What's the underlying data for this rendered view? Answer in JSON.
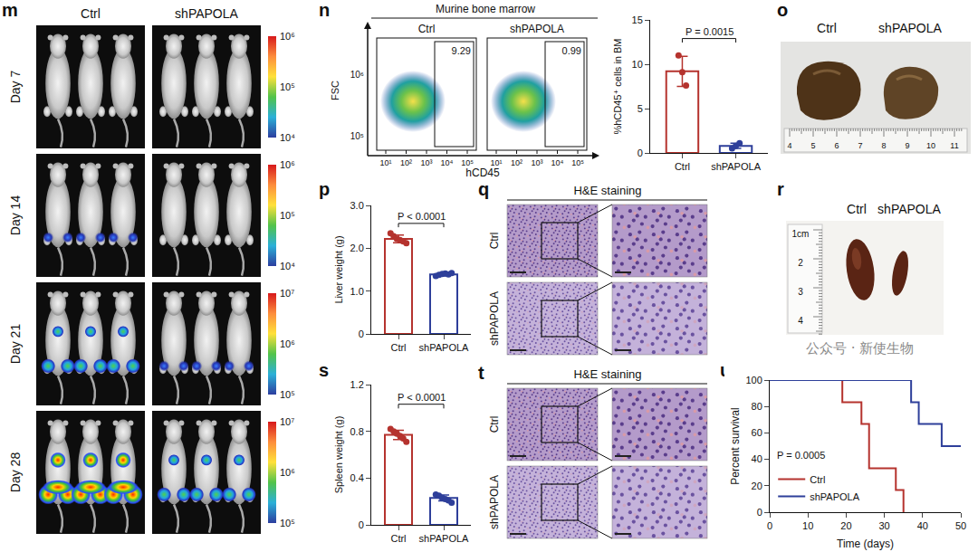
{
  "chart_data": [
    {
      "type": "bar",
      "panel": "n",
      "y_label": "%hCD45⁺ cells in BM",
      "categories": [
        "Ctrl",
        "shPAPOLA"
      ],
      "values": [
        9.2,
        0.8
      ],
      "error": [
        1.7,
        0.3
      ],
      "points": [
        [
          11.0,
          9.1,
          7.6
        ],
        [
          0.5,
          0.8,
          1.1
        ]
      ],
      "colors": [
        "#b5332e",
        "#2e3f9a"
      ],
      "ylim": [
        0,
        15
      ],
      "yticks": [
        0,
        5,
        10,
        15
      ],
      "annotations": [
        {
          "text": "P = 0.0015"
        }
      ],
      "grid": false
    },
    {
      "type": "bar",
      "panel": "p",
      "y_label": "Liver weight (g)",
      "categories": [
        "Ctrl",
        "shPAPOLA"
      ],
      "values": [
        2.22,
        1.39
      ],
      "error": [
        0.09,
        0.03
      ],
      "points": [
        [
          2.35,
          2.28,
          2.22,
          2.19,
          2.16,
          2.12
        ],
        [
          1.35,
          1.38,
          1.4,
          1.41,
          1.39,
          1.42
        ]
      ],
      "colors": [
        "#b5332e",
        "#2e3f9a"
      ],
      "ylim": [
        0,
        3
      ],
      "yticks": [
        0,
        {
          "value": 1,
          "label": "1.0"
        },
        {
          "value": 2,
          "label": "2.0"
        },
        {
          "value": 3,
          "label": "3.0"
        }
      ],
      "annotations": [
        {
          "text": "P < 0.0001"
        }
      ],
      "grid": false
    },
    {
      "type": "bar",
      "panel": "s",
      "y_label": "Spleen weight (g)",
      "categories": [
        "Ctrl",
        "shPAPOLA"
      ],
      "values": [
        0.77,
        0.23
      ],
      "error": [
        0.04,
        0.025
      ],
      "points": [
        [
          0.82,
          0.8,
          0.78,
          0.76,
          0.74,
          0.71
        ],
        [
          0.26,
          0.25,
          0.23,
          0.22,
          0.21,
          0.19
        ]
      ],
      "colors": [
        "#b5332e",
        "#2e3f9a"
      ],
      "ylim": [
        0,
        1.2
      ],
      "yticks": [
        0,
        0.4,
        0.8,
        1.2
      ],
      "annotations": [
        {
          "text": "P < 0.0001"
        }
      ],
      "grid": false
    },
    {
      "type": "line",
      "panel": "u",
      "x_label": "Time (days)",
      "y_label": "Percent survival",
      "line_style": "step",
      "series": [
        {
          "name": "Ctrl",
          "color": "#b5332e",
          "x": [
            0,
            19,
            24,
            26,
            33,
            35
          ],
          "values": [
            100,
            83.3,
            66.7,
            33.3,
            16.7,
            0
          ]
        },
        {
          "name": "shPAPOLA",
          "color": "#2e3f9a",
          "x": [
            0,
            37,
            39,
            45,
            50
          ],
          "values": [
            100,
            83.3,
            66.7,
            50,
            50
          ]
        }
      ],
      "xlim": [
        0,
        50
      ],
      "xticks": [
        0,
        10,
        20,
        30,
        40,
        50
      ],
      "ylim": [
        0,
        100
      ],
      "yticks": [
        0,
        20,
        40,
        60,
        80,
        100
      ],
      "legend": "bottom left",
      "annotations": [
        {
          "text": "P = 0.0005"
        }
      ],
      "grid": false
    }
  ],
  "images": {
    "m": {
      "panel": "m",
      "columns": [
        "Ctrl",
        "shPAPOLA"
      ],
      "rows": [
        {
          "label": "Day 7",
          "colorbar": [
            "10⁶",
            "10⁵",
            "10⁴"
          ]
        },
        {
          "label": "Day 14",
          "colorbar": [
            "10⁶",
            "10⁵",
            "10⁴"
          ]
        },
        {
          "label": "Day 21",
          "colorbar": [
            "10⁷",
            "10⁶",
            "10⁵"
          ]
        },
        {
          "label": "Day 28",
          "colorbar": [
            "10⁷",
            "10⁶",
            "10⁵"
          ]
        }
      ]
    },
    "n": {
      "title": "Murine bone marrow",
      "columns": [
        "Ctrl",
        "shPAPOLA"
      ],
      "gates": [
        "9.29",
        "0.99"
      ],
      "x_label": "hCD45",
      "y_label": "FSC",
      "xticks": [
        "10¹",
        "10²",
        "10³",
        "10⁴",
        "10⁵"
      ],
      "yticks": [
        "10⁶",
        "10⁵"
      ]
    },
    "o": {
      "panel": "o",
      "columns": [
        "Ctrl",
        "shPAPOLA"
      ],
      "ruler": [
        "4",
        "5",
        "6",
        "7",
        "8",
        "9",
        "10",
        "11"
      ]
    },
    "q": {
      "panel": "q",
      "title": "H&E staining",
      "rows": [
        "Ctrl",
        "shPAPOLA"
      ]
    },
    "r": {
      "panel": "r",
      "columns": [
        "Ctrl",
        "shPAPOLA"
      ],
      "ruler": [
        "1cm",
        "2",
        "3",
        "4"
      ]
    },
    "t": {
      "panel": "t",
      "title": "H&E staining",
      "rows": [
        "Ctrl",
        "shPAPOLA"
      ]
    },
    "watermark": "公众号 · 新使生物"
  }
}
